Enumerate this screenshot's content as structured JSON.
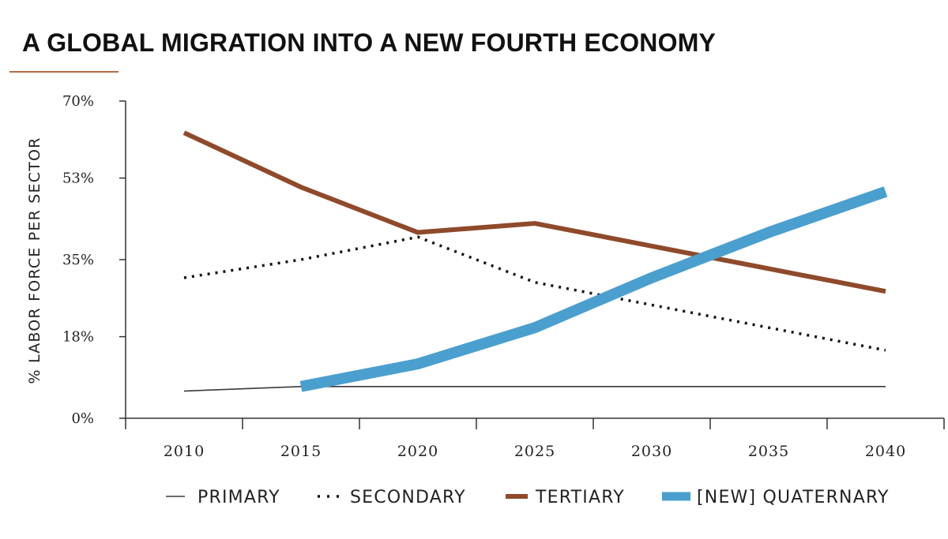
{
  "title": "A GLOBAL MIGRATION INTO A NEW FOURTH ECONOMY",
  "colors": {
    "accent_rule": "#b36a45",
    "axis": "#333333",
    "primary": "#3a3a3a",
    "secondary": "#111111",
    "tertiary": "#8f4a2b",
    "quaternary": "#4b9fce"
  },
  "chart_data": {
    "type": "line",
    "title": "A GLOBAL MIGRATION INTO A NEW FOURTH ECONOMY",
    "xlabel": "",
    "ylabel": "% LABOR FORCE PER SECTOR",
    "y_ticks": [
      {
        "value": 0,
        "label": "0%"
      },
      {
        "value": 18,
        "label": "18%"
      },
      {
        "value": 35,
        "label": "35%"
      },
      {
        "value": 53,
        "label": "53%"
      },
      {
        "value": 70,
        "label": "70%"
      }
    ],
    "x_ticks": [
      "2010",
      "2015",
      "2020",
      "2025",
      "2030",
      "2035",
      "2040"
    ],
    "xlim": [
      2007.5,
      2042.5
    ],
    "ylim": [
      0,
      70
    ],
    "grid": false,
    "legend_position": "bottom",
    "series": [
      {
        "name": "PRIMARY",
        "style": "thin-solid",
        "x": [
          2010,
          2015,
          2020,
          2025,
          2030,
          2035,
          2040
        ],
        "y": [
          6,
          7,
          7,
          7,
          7,
          7,
          7
        ]
      },
      {
        "name": "SECONDARY",
        "style": "dotted",
        "x": [
          2010,
          2015,
          2020,
          2025,
          2030,
          2035,
          2040
        ],
        "y": [
          31,
          35,
          40,
          30,
          25,
          20,
          15
        ]
      },
      {
        "name": "TERTIARY",
        "style": "thick-solid",
        "x": [
          2010,
          2015,
          2020,
          2025,
          2030,
          2035,
          2040
        ],
        "y": [
          63,
          51,
          41,
          43,
          38,
          33,
          28
        ]
      },
      {
        "name": "[NEW] QUATERNARY",
        "style": "extra-thick-solid",
        "x": [
          2015,
          2020,
          2025,
          2030,
          2035,
          2040
        ],
        "y": [
          7,
          12,
          20,
          31,
          41,
          50
        ]
      }
    ]
  }
}
